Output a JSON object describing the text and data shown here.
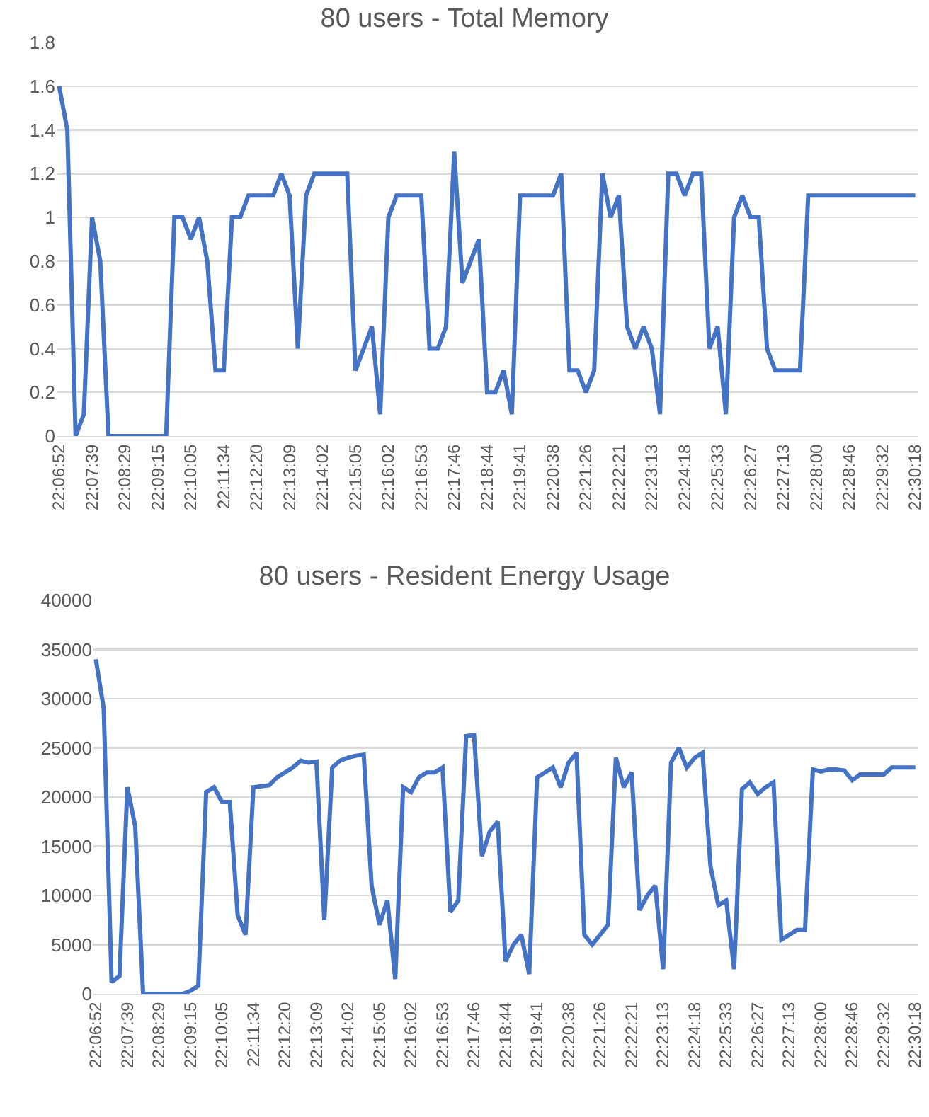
{
  "chart_data": [
    {
      "type": "line",
      "title": "80 users - Total Memory",
      "categories": [
        "22:06:52",
        null,
        null,
        null,
        "22:07:39",
        null,
        null,
        null,
        "22:08:29",
        null,
        null,
        null,
        "22:09:15",
        null,
        null,
        null,
        "22:10:05",
        null,
        null,
        null,
        "22:11:34",
        null,
        null,
        null,
        "22:12:20",
        null,
        null,
        null,
        "22:13:09",
        null,
        null,
        null,
        "22:14:02",
        null,
        null,
        null,
        "22:15:05",
        null,
        null,
        null,
        "22:16:02",
        null,
        null,
        null,
        "22:16:53",
        null,
        null,
        null,
        "22:17:46",
        null,
        null,
        null,
        "22:18:44",
        null,
        null,
        null,
        "22:19:41",
        null,
        null,
        null,
        "22:20:38",
        null,
        null,
        null,
        "22:21:26",
        null,
        null,
        null,
        "22:22:21",
        null,
        null,
        null,
        "22:23:13",
        null,
        null,
        null,
        "22:24:18",
        null,
        null,
        null,
        "22:25:33",
        null,
        null,
        null,
        "22:26:27",
        null,
        null,
        null,
        "22:27:13",
        null,
        null,
        null,
        "22:28:00",
        null,
        null,
        null,
        "22:28:46",
        null,
        null,
        null,
        "22:29:32",
        null,
        null,
        null,
        "22:30:18"
      ],
      "series": [
        {
          "color": "#4472c4",
          "values": [
            1.6,
            1.4,
            0,
            0.1,
            1.0,
            0.8,
            0,
            0,
            0,
            0,
            0,
            0,
            0,
            0,
            1.0,
            1.0,
            0.9,
            1.0,
            0.8,
            0.3,
            0.3,
            1.0,
            1.0,
            1.1,
            1.1,
            1.1,
            1.1,
            1.2,
            1.1,
            0.4,
            1.1,
            1.2,
            1.2,
            1.2,
            1.2,
            1.2,
            0.3,
            0.4,
            0.5,
            0.1,
            1.0,
            1.1,
            1.1,
            1.1,
            1.1,
            0.4,
            0.4,
            0.5,
            1.3,
            0.7,
            0.8,
            0.9,
            0.2,
            0.2,
            0.3,
            0.1,
            1.1,
            1.1,
            1.1,
            1.1,
            1.1,
            1.2,
            0.3,
            0.3,
            0.2,
            0.3,
            1.2,
            1.0,
            1.1,
            0.5,
            0.4,
            0.5,
            0.4,
            0.1,
            1.2,
            1.2,
            1.1,
            1.2,
            1.2,
            0.4,
            0.5,
            0.1,
            1.0,
            1.1,
            1.0,
            1.0,
            0.4,
            0.3,
            0.3,
            0.3,
            0.3,
            1.1,
            1.1,
            1.1,
            1.1,
            1.1,
            1.1,
            1.1,
            1.1,
            1.1,
            1.1,
            1.1,
            1.1,
            1.1,
            1.1
          ]
        }
      ],
      "ylim": [
        0,
        1.8
      ],
      "yticks": [
        0,
        {
          "value": 0.2,
          "label": "0.2"
        },
        {
          "value": 0.4,
          "label": "0.4"
        },
        {
          "value": 0.6,
          "label": "0.6"
        },
        {
          "value": 0.8,
          "label": "0.8"
        },
        1,
        {
          "value": 1.2,
          "label": "1.2"
        },
        {
          "value": 1.4,
          "label": "1.4"
        },
        {
          "value": 1.6,
          "label": "1.6"
        },
        {
          "value": 1.8,
          "label": "1.8"
        }
      ],
      "grid": "y",
      "marker": "none",
      "line_style": "solid"
    },
    {
      "type": "line",
      "title": "80 users - Resident Energy Usage",
      "categories": [
        "22:06:52",
        null,
        null,
        null,
        "22:07:39",
        null,
        null,
        null,
        "22:08:29",
        null,
        null,
        null,
        "22:09:15",
        null,
        null,
        null,
        "22:10:05",
        null,
        null,
        null,
        "22:11:34",
        null,
        null,
        null,
        "22:12:20",
        null,
        null,
        null,
        "22:13:09",
        null,
        null,
        null,
        "22:14:02",
        null,
        null,
        null,
        "22:15:05",
        null,
        null,
        null,
        "22:16:02",
        null,
        null,
        null,
        "22:16:53",
        null,
        null,
        null,
        "22:17:46",
        null,
        null,
        null,
        "22:18:44",
        null,
        null,
        null,
        "22:19:41",
        null,
        null,
        null,
        "22:20:38",
        null,
        null,
        null,
        "22:21:26",
        null,
        null,
        null,
        "22:22:21",
        null,
        null,
        null,
        "22:23:13",
        null,
        null,
        null,
        "22:24:18",
        null,
        null,
        null,
        "22:25:33",
        null,
        null,
        null,
        "22:26:27",
        null,
        null,
        null,
        "22:27:13",
        null,
        null,
        null,
        "22:28:00",
        null,
        null,
        null,
        "22:28:46",
        null,
        null,
        null,
        "22:29:32",
        null,
        null,
        null,
        "22:30:18"
      ],
      "series": [
        {
          "color": "#4472c4",
          "values": [
            34000,
            29000,
            1200,
            1800,
            21000,
            17000,
            0,
            0,
            0,
            0,
            0,
            0,
            300,
            800,
            20500,
            21000,
            19500,
            19500,
            8000,
            6000,
            21000,
            21100,
            21200,
            22000,
            22500,
            23000,
            23700,
            23500,
            23600,
            7500,
            23000,
            23700,
            24000,
            24200,
            24300,
            11000,
            7000,
            9500,
            1500,
            21000,
            20500,
            22000,
            22500,
            22500,
            23000,
            8300,
            9500,
            26200,
            26300,
            14000,
            16500,
            17500,
            3300,
            5000,
            6000,
            2000,
            22000,
            22500,
            23000,
            21000,
            23500,
            24500,
            6000,
            5000,
            6000,
            7000,
            24000,
            21000,
            22500,
            8500,
            10000,
            11000,
            2500,
            23500,
            25000,
            23000,
            24000,
            24500,
            13000,
            9000,
            9500,
            2500,
            20800,
            21500,
            20300,
            21000,
            21500,
            5500,
            6000,
            6500,
            6500,
            22800,
            22600,
            22800,
            22800,
            22700,
            21700,
            22300,
            22300,
            22300,
            22300,
            23000,
            23000,
            23000,
            23000
          ]
        }
      ],
      "ylim": [
        0,
        40000
      ],
      "yticks": [
        0,
        5000,
        10000,
        15000,
        20000,
        25000,
        30000,
        35000,
        40000
      ],
      "grid": "y",
      "marker": "none",
      "line_style": "solid"
    }
  ]
}
